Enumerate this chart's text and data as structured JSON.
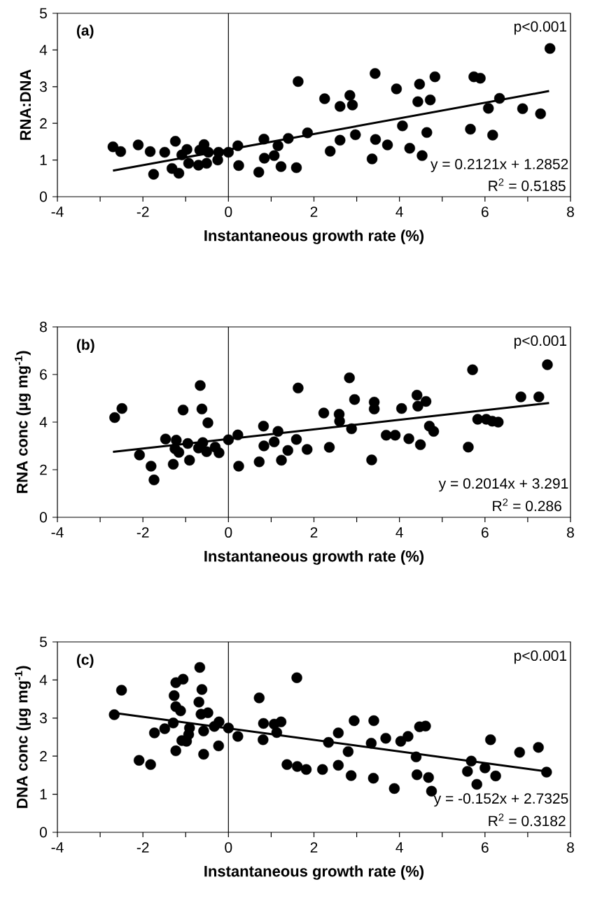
{
  "chart_data": [
    {
      "type": "scatter",
      "xlabel": "Instantaneous growth rate (%)",
      "ylabel": "RNA:DNA",
      "xlim": [
        -4,
        8
      ],
      "ylim": [
        0,
        5
      ],
      "xticks": [
        -4,
        {
          "value": -3,
          "label": null
        },
        -2,
        {
          "value": -1,
          "label": null
        },
        0,
        {
          "value": 1,
          "label": null
        },
        2,
        {
          "value": 3,
          "label": null
        },
        4,
        {
          "value": 5,
          "label": null
        },
        6,
        {
          "value": 7,
          "label": null
        },
        8
      ],
      "yticks": [
        0,
        1,
        2,
        3,
        4,
        5
      ],
      "marker": "circle",
      "ref_lines": [
        {
          "axis": "x",
          "value": 0
        }
      ],
      "annotations": [
        "(a)",
        "p<0.001",
        "y = 0.2121x + 1.2852",
        "R$^{2}$ = 0.5185"
      ],
      "series": [
        {
          "color": "#000000",
          "x": [
            -2.7,
            -2.52,
            -2.11,
            -1.83,
            -1.75,
            -1.49,
            -1.24,
            -1.32,
            -1.16,
            -1.09,
            -0.97,
            -0.93,
            -0.7,
            -0.67,
            -0.57,
            -0.51,
            -0.47,
            -0.25,
            -0.23,
            0.0,
            0.22,
            0.24,
            0.71,
            0.83,
            0.84,
            1.07,
            1.16,
            1.23,
            1.4,
            1.59,
            1.63,
            1.85,
            2.25,
            2.38,
            2.61,
            2.61,
            2.84,
            2.9,
            2.97,
            3.36,
            3.43,
            3.44,
            3.72,
            3.93,
            4.07,
            4.24,
            4.43,
            4.47,
            4.53,
            4.64,
            4.72,
            4.83,
            5.66,
            5.74,
            5.89,
            6.08,
            6.18,
            6.34,
            6.88,
            7.3,
            7.52
          ],
          "values": [
            1.36,
            1.23,
            1.41,
            1.23,
            0.61,
            1.21,
            1.51,
            0.77,
            0.64,
            1.14,
            1.29,
            0.91,
            0.86,
            1.27,
            1.42,
            0.91,
            1.21,
            1.0,
            1.21,
            1.21,
            1.39,
            0.85,
            0.67,
            1.57,
            1.05,
            1.12,
            1.39,
            0.82,
            1.59,
            0.79,
            3.14,
            1.74,
            2.67,
            1.24,
            2.46,
            1.54,
            2.76,
            2.5,
            1.69,
            1.03,
            3.36,
            1.56,
            1.41,
            2.94,
            1.93,
            1.32,
            2.59,
            3.07,
            1.12,
            1.75,
            2.64,
            3.27,
            1.84,
            3.27,
            3.23,
            2.41,
            1.68,
            2.68,
            2.4,
            2.26,
            4.04
          ]
        },
        {
          "type": "line",
          "color": "#000000",
          "marker": "none",
          "x": [
            -2.7,
            7.5
          ],
          "values": [
            0.71,
            2.88
          ]
        }
      ]
    },
    {
      "type": "scatter",
      "xlabel": "Instantaneous growth rate (%)",
      "ylabel": "RNA conc (µg mg$^{-1}$)",
      "xlim": [
        -4,
        8
      ],
      "ylim": [
        0,
        8
      ],
      "xticks": [
        -4,
        {
          "value": -3,
          "label": null
        },
        -2,
        {
          "value": -1,
          "label": null
        },
        0,
        {
          "value": 1,
          "label": null
        },
        2,
        {
          "value": 3,
          "label": null
        },
        4,
        {
          "value": 5,
          "label": null
        },
        6,
        {
          "value": 7,
          "label": null
        },
        8
      ],
      "yticks": [
        0,
        2,
        4,
        6,
        8
      ],
      "marker": "circle",
      "ref_lines": [
        {
          "axis": "x",
          "value": 0
        }
      ],
      "annotations": [
        "(b)",
        "p<0.001",
        "y = 0.2014x + 3.291",
        "R$^{2}$ = 0.286"
      ],
      "series": [
        {
          "color": "#000000",
          "x": [
            -2.66,
            -2.49,
            -2.08,
            -1.81,
            -1.74,
            -1.47,
            -1.29,
            -1.22,
            -1.25,
            -1.16,
            -1.06,
            -0.95,
            -0.91,
            -0.66,
            -0.62,
            -0.48,
            -0.7,
            -0.6,
            -0.51,
            -0.22,
            -0.31,
            0.0,
            0.22,
            0.24,
            0.72,
            0.82,
            0.83,
            1.07,
            1.16,
            1.24,
            1.39,
            1.59,
            1.63,
            1.84,
            2.23,
            2.36,
            2.59,
            2.6,
            2.83,
            2.88,
            2.95,
            3.35,
            3.41,
            3.41,
            3.69,
            3.9,
            4.05,
            4.22,
            4.41,
            4.43,
            4.49,
            4.62,
            4.7,
            4.8,
            5.61,
            5.71,
            5.83,
            6.03,
            6.17,
            6.31,
            6.84,
            7.26,
            7.46
          ],
          "values": [
            4.19,
            4.57,
            2.62,
            2.15,
            1.57,
            3.29,
            2.23,
            3.24,
            2.88,
            2.73,
            4.51,
            3.1,
            2.4,
            5.54,
            4.55,
            3.97,
            2.91,
            3.14,
            2.76,
            2.71,
            2.95,
            3.26,
            3.46,
            2.15,
            2.33,
            3.83,
            3.0,
            3.17,
            3.61,
            2.4,
            2.81,
            3.27,
            5.43,
            2.85,
            4.38,
            2.94,
            4.33,
            4.04,
            5.86,
            3.72,
            4.95,
            2.41,
            4.84,
            4.55,
            3.45,
            3.45,
            4.57,
            3.3,
            5.13,
            4.67,
            3.05,
            4.87,
            3.83,
            3.61,
            2.95,
            6.2,
            4.12,
            4.12,
            4.04,
            4.0,
            5.06,
            5.06,
            6.41
          ]
        },
        {
          "type": "line",
          "color": "#000000",
          "marker": "none",
          "x": [
            -2.7,
            7.5
          ],
          "values": [
            2.75,
            4.8
          ]
        }
      ]
    },
    {
      "type": "scatter",
      "xlabel": "Instantaneous growth rate (%)",
      "ylabel": "DNA conc (µg mg$^{-1}$)",
      "xlim": [
        -4,
        8
      ],
      "ylim": [
        0,
        5
      ],
      "xticks": [
        -4,
        {
          "value": -3,
          "label": null
        },
        -2,
        {
          "value": -1,
          "label": null
        },
        0,
        {
          "value": 1,
          "label": null
        },
        2,
        {
          "value": 3,
          "label": null
        },
        4,
        {
          "value": 5,
          "label": null
        },
        6,
        {
          "value": 7,
          "label": null
        },
        8
      ],
      "yticks": [
        0,
        1,
        2,
        3,
        4,
        5
      ],
      "marker": "circle",
      "ref_lines": [
        {
          "axis": "x",
          "value": 0
        }
      ],
      "annotations": [
        "(c)",
        "p<0.001",
        "y = -0.152x + 2.7325",
        "R$^{2}$ = 0.3182"
      ],
      "series": [
        {
          "color": "#000000",
          "x": [
            -2.67,
            -2.5,
            -2.09,
            -1.82,
            -1.73,
            -1.49,
            -1.29,
            -1.27,
            -1.23,
            -1.06,
            -1.23,
            -1.12,
            -1.23,
            -1.09,
            -0.98,
            -0.93,
            -0.91,
            -0.67,
            -0.62,
            -0.69,
            -0.64,
            -0.48,
            -0.58,
            -0.58,
            -0.33,
            -0.22,
            -0.23,
            0.0,
            0.22,
            0.72,
            0.82,
            0.81,
            1.07,
            1.23,
            1.13,
            1.37,
            1.6,
            1.61,
            1.82,
            2.2,
            2.34,
            2.57,
            2.57,
            2.8,
            2.87,
            2.94,
            3.34,
            3.4,
            3.39,
            3.68,
            3.88,
            4.03,
            4.2,
            4.39,
            4.41,
            4.47,
            4.61,
            4.68,
            4.75,
            5.68,
            5.59,
            5.81,
            6.0,
            6.13,
            6.25,
            6.81,
            7.25,
            7.44
          ],
          "values": [
            3.09,
            3.73,
            1.89,
            1.78,
            2.61,
            2.72,
            2.87,
            3.59,
            3.93,
            4.02,
            3.3,
            3.19,
            2.14,
            2.41,
            2.39,
            2.57,
            2.74,
            4.33,
            3.75,
            3.42,
            3.1,
            3.14,
            2.66,
            2.05,
            2.78,
            2.9,
            2.27,
            2.74,
            2.52,
            3.53,
            2.86,
            2.43,
            2.84,
            2.9,
            2.62,
            1.78,
            4.06,
            1.73,
            1.65,
            1.65,
            2.36,
            2.61,
            1.76,
            2.12,
            1.49,
            2.93,
            2.34,
            2.93,
            1.42,
            2.47,
            1.15,
            2.39,
            2.52,
            1.98,
            1.51,
            2.77,
            2.79,
            1.44,
            1.08,
            1.87,
            1.6,
            1.26,
            1.69,
            2.43,
            1.48,
            2.1,
            2.23,
            1.58
          ]
        },
        {
          "type": "line",
          "color": "#000000",
          "marker": "none",
          "x": [
            -2.7,
            7.5
          ],
          "values": [
            3.14,
            1.59
          ]
        }
      ]
    }
  ]
}
